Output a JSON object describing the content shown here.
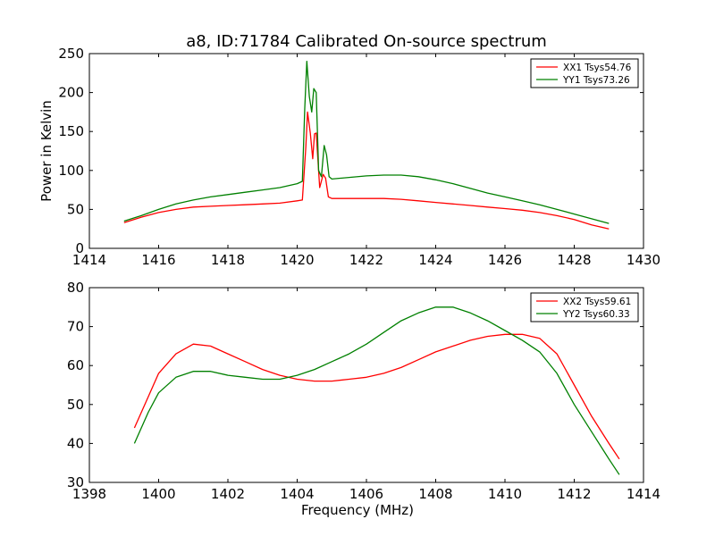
{
  "figure": {
    "title": "a8, ID:71784 Calibrated On-source spectrum"
  },
  "chart_data": [
    {
      "type": "line",
      "title": "a8, ID:71784 Calibrated On-source spectrum",
      "xlabel": "",
      "ylabel": "Power in Kelvin",
      "xlim": [
        1414,
        1430
      ],
      "ylim": [
        0,
        250
      ],
      "xticks": [
        1414,
        1416,
        1418,
        1420,
        1422,
        1424,
        1426,
        1428,
        1430
      ],
      "yticks": [
        0,
        50,
        100,
        150,
        200,
        250
      ],
      "legend_position": "top-right",
      "grid": false,
      "series": [
        {
          "name": "XX1 Tsys54.76",
          "color": "#ff0000",
          "x": [
            1415.0,
            1415.5,
            1416.0,
            1416.5,
            1417.0,
            1417.5,
            1418.0,
            1418.5,
            1419.0,
            1419.5,
            1420.0,
            1420.15,
            1420.25,
            1420.3,
            1420.38,
            1420.45,
            1420.5,
            1420.55,
            1420.65,
            1420.75,
            1420.82,
            1420.9,
            1421.0,
            1421.5,
            1422.0,
            1422.5,
            1423.0,
            1423.5,
            1424.0,
            1424.5,
            1425.0,
            1425.5,
            1426.0,
            1426.5,
            1427.0,
            1427.5,
            1428.0,
            1428.5,
            1429.0
          ],
          "y": [
            33,
            40,
            46,
            50,
            53,
            54,
            55,
            56,
            57,
            58,
            61,
            62,
            130,
            175,
            148,
            115,
            147,
            148,
            78,
            95,
            90,
            66,
            64,
            64,
            64,
            64,
            63,
            61,
            59,
            57,
            55,
            53,
            51,
            49,
            46,
            42,
            37,
            30,
            25
          ]
        },
        {
          "name": "YY1 Tsys73.26",
          "color": "#008000",
          "x": [
            1415.0,
            1415.5,
            1416.0,
            1416.5,
            1417.0,
            1417.5,
            1418.0,
            1418.5,
            1419.0,
            1419.5,
            1420.0,
            1420.15,
            1420.22,
            1420.28,
            1420.35,
            1420.42,
            1420.48,
            1420.55,
            1420.62,
            1420.7,
            1420.78,
            1420.85,
            1420.92,
            1421.0,
            1421.5,
            1422.0,
            1422.5,
            1423.0,
            1423.5,
            1424.0,
            1424.5,
            1425.0,
            1425.5,
            1426.0,
            1426.5,
            1427.0,
            1427.5,
            1428.0,
            1428.5,
            1429.0
          ],
          "y": [
            35,
            42,
            50,
            57,
            62,
            66,
            69,
            72,
            75,
            78,
            83,
            86,
            180,
            240,
            195,
            175,
            205,
            200,
            100,
            92,
            132,
            120,
            92,
            89,
            91,
            93,
            94,
            94,
            92,
            88,
            83,
            77,
            71,
            66,
            61,
            56,
            50,
            44,
            38,
            32
          ]
        }
      ]
    },
    {
      "type": "line",
      "title": "",
      "xlabel": "Frequency (MHz)",
      "ylabel": "",
      "xlim": [
        1398,
        1414
      ],
      "ylim": [
        30,
        80
      ],
      "xticks": [
        1398,
        1400,
        1402,
        1404,
        1406,
        1408,
        1410,
        1412,
        1414
      ],
      "yticks": [
        30,
        40,
        50,
        60,
        70,
        80
      ],
      "legend_position": "top-right",
      "grid": false,
      "series": [
        {
          "name": "XX2 Tsys59.61",
          "color": "#ff0000",
          "x": [
            1399.3,
            1399.7,
            1400.0,
            1400.5,
            1401.0,
            1401.5,
            1402.0,
            1402.5,
            1403.0,
            1403.5,
            1404.0,
            1404.5,
            1405.0,
            1405.5,
            1406.0,
            1406.5,
            1407.0,
            1407.5,
            1408.0,
            1408.5,
            1409.0,
            1409.5,
            1410.0,
            1410.5,
            1411.0,
            1411.5,
            1412.0,
            1412.5,
            1413.0,
            1413.3
          ],
          "y": [
            44,
            52,
            58,
            63,
            65.5,
            65,
            63,
            61,
            59,
            57.5,
            56.5,
            56,
            56,
            56.5,
            57,
            58,
            59.5,
            61.5,
            63.5,
            65,
            66.5,
            67.5,
            68,
            68,
            67,
            63,
            55,
            47,
            40,
            36
          ]
        },
        {
          "name": "YY2 Tsys60.33",
          "color": "#008000",
          "x": [
            1399.3,
            1399.7,
            1400.0,
            1400.5,
            1401.0,
            1401.5,
            1402.0,
            1402.5,
            1403.0,
            1403.5,
            1404.0,
            1404.5,
            1405.0,
            1405.5,
            1406.0,
            1406.5,
            1407.0,
            1407.5,
            1408.0,
            1408.5,
            1409.0,
            1409.5,
            1410.0,
            1410.5,
            1411.0,
            1411.5,
            1412.0,
            1412.5,
            1413.0,
            1413.3
          ],
          "y": [
            40,
            48,
            53,
            57,
            58.5,
            58.5,
            57.5,
            57,
            56.5,
            56.5,
            57.5,
            59,
            61,
            63,
            65.5,
            68.5,
            71.5,
            73.5,
            75,
            75,
            73.5,
            71.5,
            69,
            66.5,
            63.5,
            58,
            50,
            43,
            36,
            32
          ]
        }
      ]
    }
  ]
}
